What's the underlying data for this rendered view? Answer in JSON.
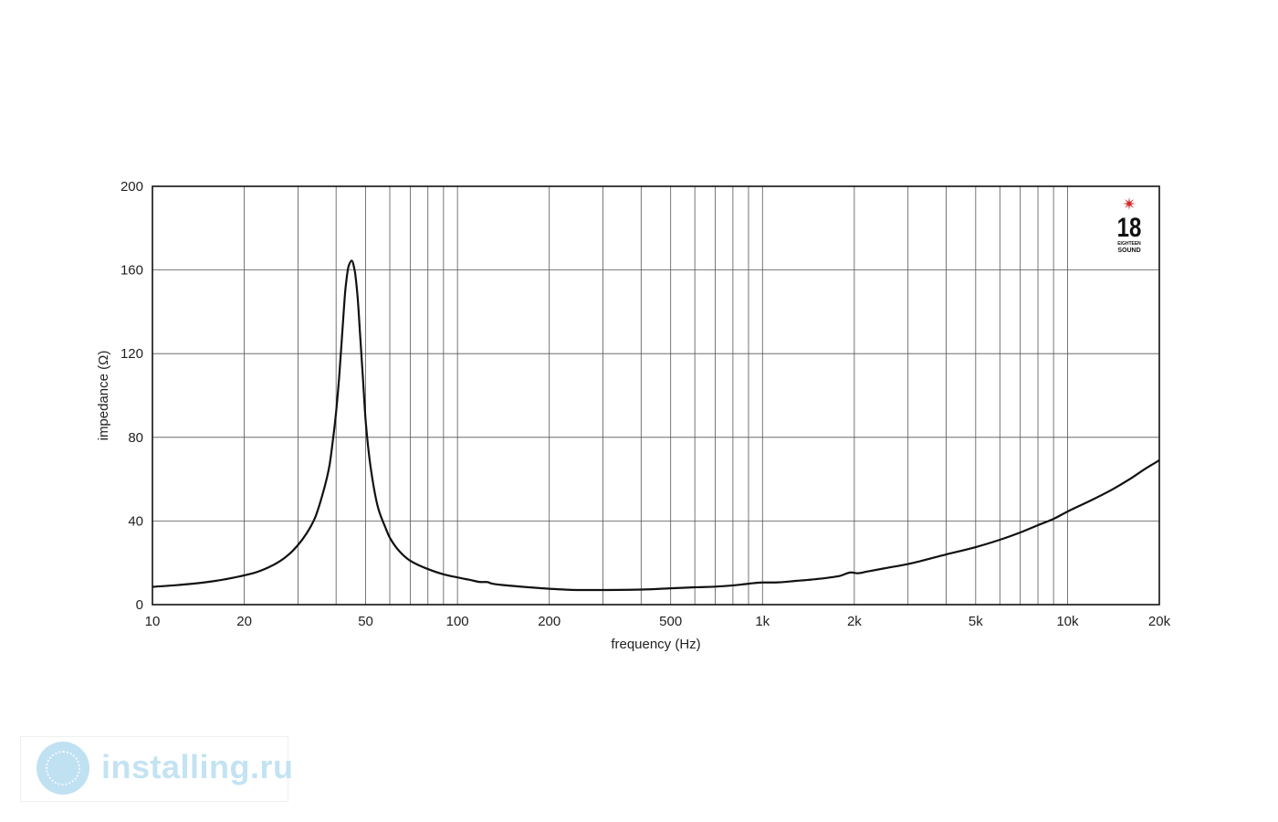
{
  "chart_data": {
    "type": "line",
    "title": "",
    "xlabel": "frequency (Hz)",
    "ylabel": "impedance (Ω)",
    "x_scale": "log",
    "xlim": [
      10,
      20000
    ],
    "ylim": [
      0,
      200
    ],
    "grid": true,
    "x_ticks": [
      {
        "value": 10,
        "label": "10"
      },
      {
        "value": 20,
        "label": "20"
      },
      {
        "value": 50,
        "label": "50"
      },
      {
        "value": 100,
        "label": "100"
      },
      {
        "value": 200,
        "label": "200"
      },
      {
        "value": 500,
        "label": "500"
      },
      {
        "value": 1000,
        "label": "1k"
      },
      {
        "value": 2000,
        "label": "2k"
      },
      {
        "value": 5000,
        "label": "5k"
      },
      {
        "value": 10000,
        "label": "10k"
      },
      {
        "value": 20000,
        "label": "20k"
      }
    ],
    "y_ticks": [
      {
        "value": 0,
        "label": "0"
      },
      {
        "value": 40,
        "label": "40"
      },
      {
        "value": 80,
        "label": "80"
      },
      {
        "value": 120,
        "label": "120"
      },
      {
        "value": 160,
        "label": "160"
      },
      {
        "value": 200,
        "label": "200"
      }
    ],
    "series": [
      {
        "points": [
          [
            10,
            8.5
          ],
          [
            12,
            9.3
          ],
          [
            14,
            10.2
          ],
          [
            16,
            11.3
          ],
          [
            18,
            12.6
          ],
          [
            20,
            14
          ],
          [
            22,
            15.6
          ],
          [
            24,
            17.8
          ],
          [
            26,
            20.5
          ],
          [
            28,
            24
          ],
          [
            30,
            28.5
          ],
          [
            32,
            34
          ],
          [
            34,
            41
          ],
          [
            36,
            52
          ],
          [
            38,
            66
          ],
          [
            39,
            78
          ],
          [
            40,
            92
          ],
          [
            41,
            110
          ],
          [
            42,
            132
          ],
          [
            43,
            152
          ],
          [
            44,
            162
          ],
          [
            45,
            164.5
          ],
          [
            46,
            160
          ],
          [
            47,
            148
          ],
          [
            48,
            128
          ],
          [
            49,
            108
          ],
          [
            50,
            88
          ],
          [
            52,
            65
          ],
          [
            55,
            46
          ],
          [
            58,
            37
          ],
          [
            60,
            32
          ],
          [
            65,
            25
          ],
          [
            70,
            21
          ],
          [
            80,
            17
          ],
          [
            90,
            14.5
          ],
          [
            100,
            13
          ],
          [
            110,
            11.8
          ],
          [
            120,
            10.8
          ],
          [
            125,
            10.8
          ],
          [
            130,
            10
          ],
          [
            150,
            9
          ],
          [
            200,
            7.6
          ],
          [
            250,
            7
          ],
          [
            300,
            7
          ],
          [
            400,
            7.2
          ],
          [
            500,
            7.8
          ],
          [
            600,
            8.3
          ],
          [
            700,
            8.6
          ],
          [
            800,
            9.2
          ],
          [
            900,
            10
          ],
          [
            1000,
            10.6
          ],
          [
            1100,
            10.6
          ],
          [
            1300,
            11.4
          ],
          [
            1500,
            12.2
          ],
          [
            1800,
            13.8
          ],
          [
            1950,
            15.4
          ],
          [
            2050,
            15
          ],
          [
            2200,
            15.8
          ],
          [
            2500,
            17.3
          ],
          [
            3000,
            19.4
          ],
          [
            4000,
            24
          ],
          [
            5000,
            27.5
          ],
          [
            6000,
            31
          ],
          [
            7000,
            34.5
          ],
          [
            8000,
            38
          ],
          [
            9000,
            41
          ],
          [
            10000,
            44.5
          ],
          [
            12000,
            50
          ],
          [
            14000,
            55
          ],
          [
            16000,
            60
          ],
          [
            18000,
            65
          ],
          [
            20000,
            69
          ]
        ]
      }
    ],
    "brand": {
      "number": "18",
      "small": "EIGHTEEN",
      "word": "SOUND",
      "star_color": "#d62b2b"
    }
  },
  "watermark": {
    "text": "installing.ru",
    "color": "#c3e3f3"
  }
}
